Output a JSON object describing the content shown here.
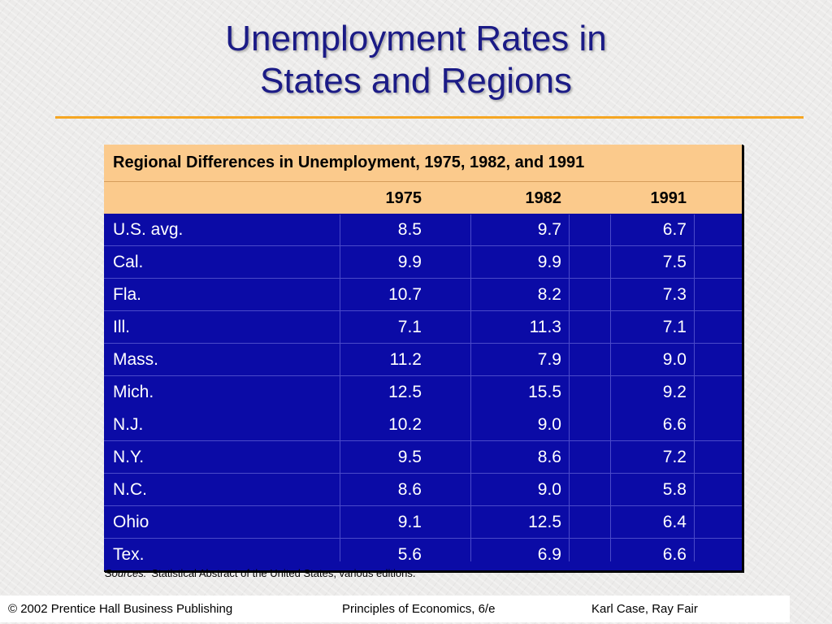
{
  "slide": {
    "title_line1": "Unemployment Rates in",
    "title_line2": "States and Regions"
  },
  "table": {
    "caption": "Regional Differences in Unemployment, 1975, 1982, and 1991",
    "columns": [
      "1975",
      "1982",
      "1991"
    ],
    "rows": [
      {
        "label": "U.S. avg.",
        "v1975": "8.5",
        "v1982": "9.7",
        "v1991": "6.7"
      },
      {
        "label": "Cal.",
        "v1975": "9.9",
        "v1982": "9.9",
        "v1991": "7.5"
      },
      {
        "label": "Fla.",
        "v1975": "10.7",
        "v1982": "8.2",
        "v1991": "7.3"
      },
      {
        "label": "Ill.",
        "v1975": "7.1",
        "v1982": "11.3",
        "v1991": "7.1"
      },
      {
        "label": "Mass.",
        "v1975": "11.2",
        "v1982": "7.9",
        "v1991": "9.0"
      },
      {
        "label": "Mich.",
        "v1975": "12.5",
        "v1982": "15.5",
        "v1991": "9.2"
      },
      {
        "label": "N.J.",
        "v1975": "10.2",
        "v1982": "9.0",
        "v1991": "6.6"
      },
      {
        "label": "N.Y.",
        "v1975": "9.5",
        "v1982": "8.6",
        "v1991": "7.2"
      },
      {
        "label": "N.C.",
        "v1975": "8.6",
        "v1982": "9.0",
        "v1991": "5.8"
      },
      {
        "label": "Ohio",
        "v1975": "9.1",
        "v1982": "12.5",
        "v1991": "6.4"
      },
      {
        "label": "Tex.",
        "v1975": "5.6",
        "v1982": "6.9",
        "v1991": "6.6"
      }
    ]
  },
  "sources": {
    "label": "Sources:",
    "text": "Statistical Abstract of the United States, various editions."
  },
  "footer": {
    "copyright": "© 2002 Prentice Hall Business Publishing",
    "book": "Principles of Economics, 6/e",
    "authors": "Karl Case, Ray Fair"
  },
  "colors": {
    "title": "#1b1b86",
    "accent_rule": "#f5a623",
    "header_fill": "#fbca8c",
    "body_fill": "#0b0ba6"
  }
}
